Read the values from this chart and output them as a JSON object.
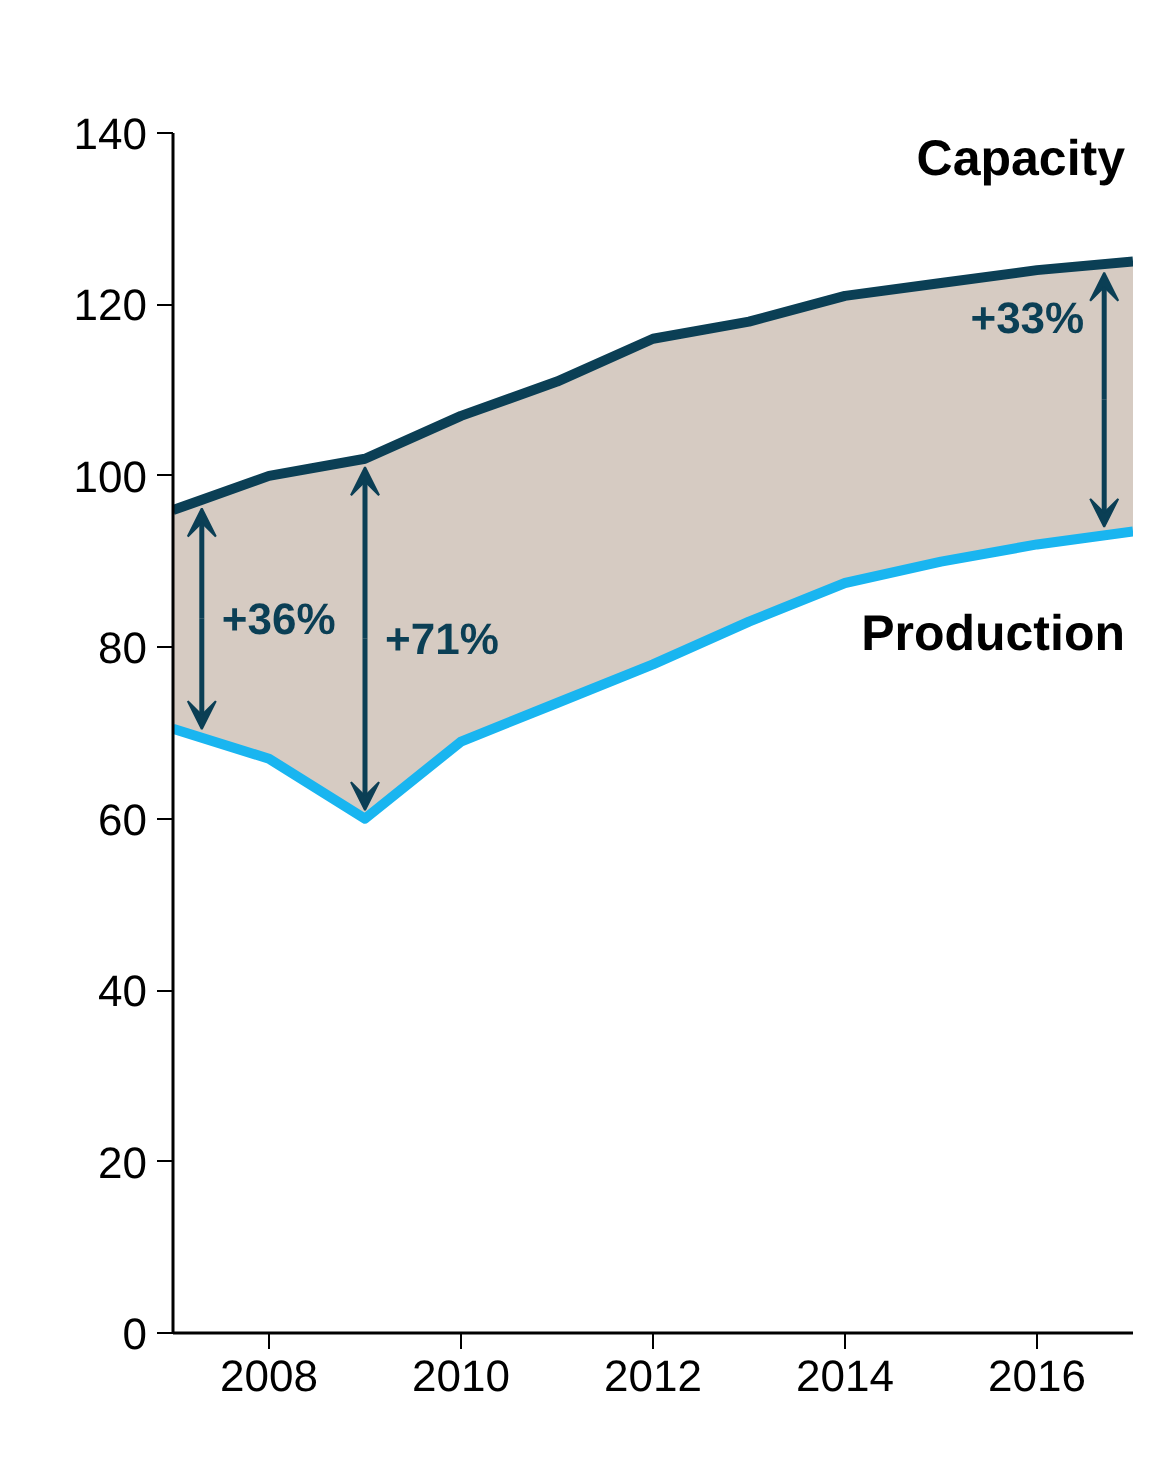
{
  "chart_data": {
    "type": "line",
    "x": [
      2007,
      2008,
      2009,
      2010,
      2011,
      2012,
      2013,
      2014,
      2015,
      2016,
      2017
    ],
    "series": [
      {
        "name": "Capacity",
        "color": "#0b3f55",
        "values": [
          96,
          100,
          102,
          107,
          111,
          116,
          118,
          121,
          122.5,
          124,
          125
        ]
      },
      {
        "name": "Production",
        "color": "#19b5f0",
        "values": [
          70.5,
          67,
          60,
          69,
          73.5,
          78,
          83,
          87.5,
          90,
          92,
          93.5
        ],
        "lower": [
          70.5,
          67,
          60,
          69,
          73.5,
          78,
          83,
          87.5,
          90,
          92,
          93.5
        ],
        "upper": [
          96,
          100,
          102,
          107,
          111,
          116,
          118,
          121,
          122.5,
          124,
          125
        ]
      }
    ],
    "annotations": [
      {
        "text": "+36%",
        "x": 2007,
        "y": 96
      },
      {
        "text": "+71%",
        "x": 2009,
        "y": 102
      },
      {
        "text": "+33%",
        "x": 2017,
        "y": 125
      }
    ],
    "xlim": [
      2007,
      2017
    ],
    "xticks": [
      2008,
      2010,
      2012,
      2014,
      2016
    ],
    "ylim": [
      0,
      140
    ],
    "yticks": [
      0,
      20,
      40,
      60,
      80,
      100,
      120,
      140
    ],
    "grid": false,
    "legend": false,
    "marker": "none",
    "line_style": "solid"
  }
}
